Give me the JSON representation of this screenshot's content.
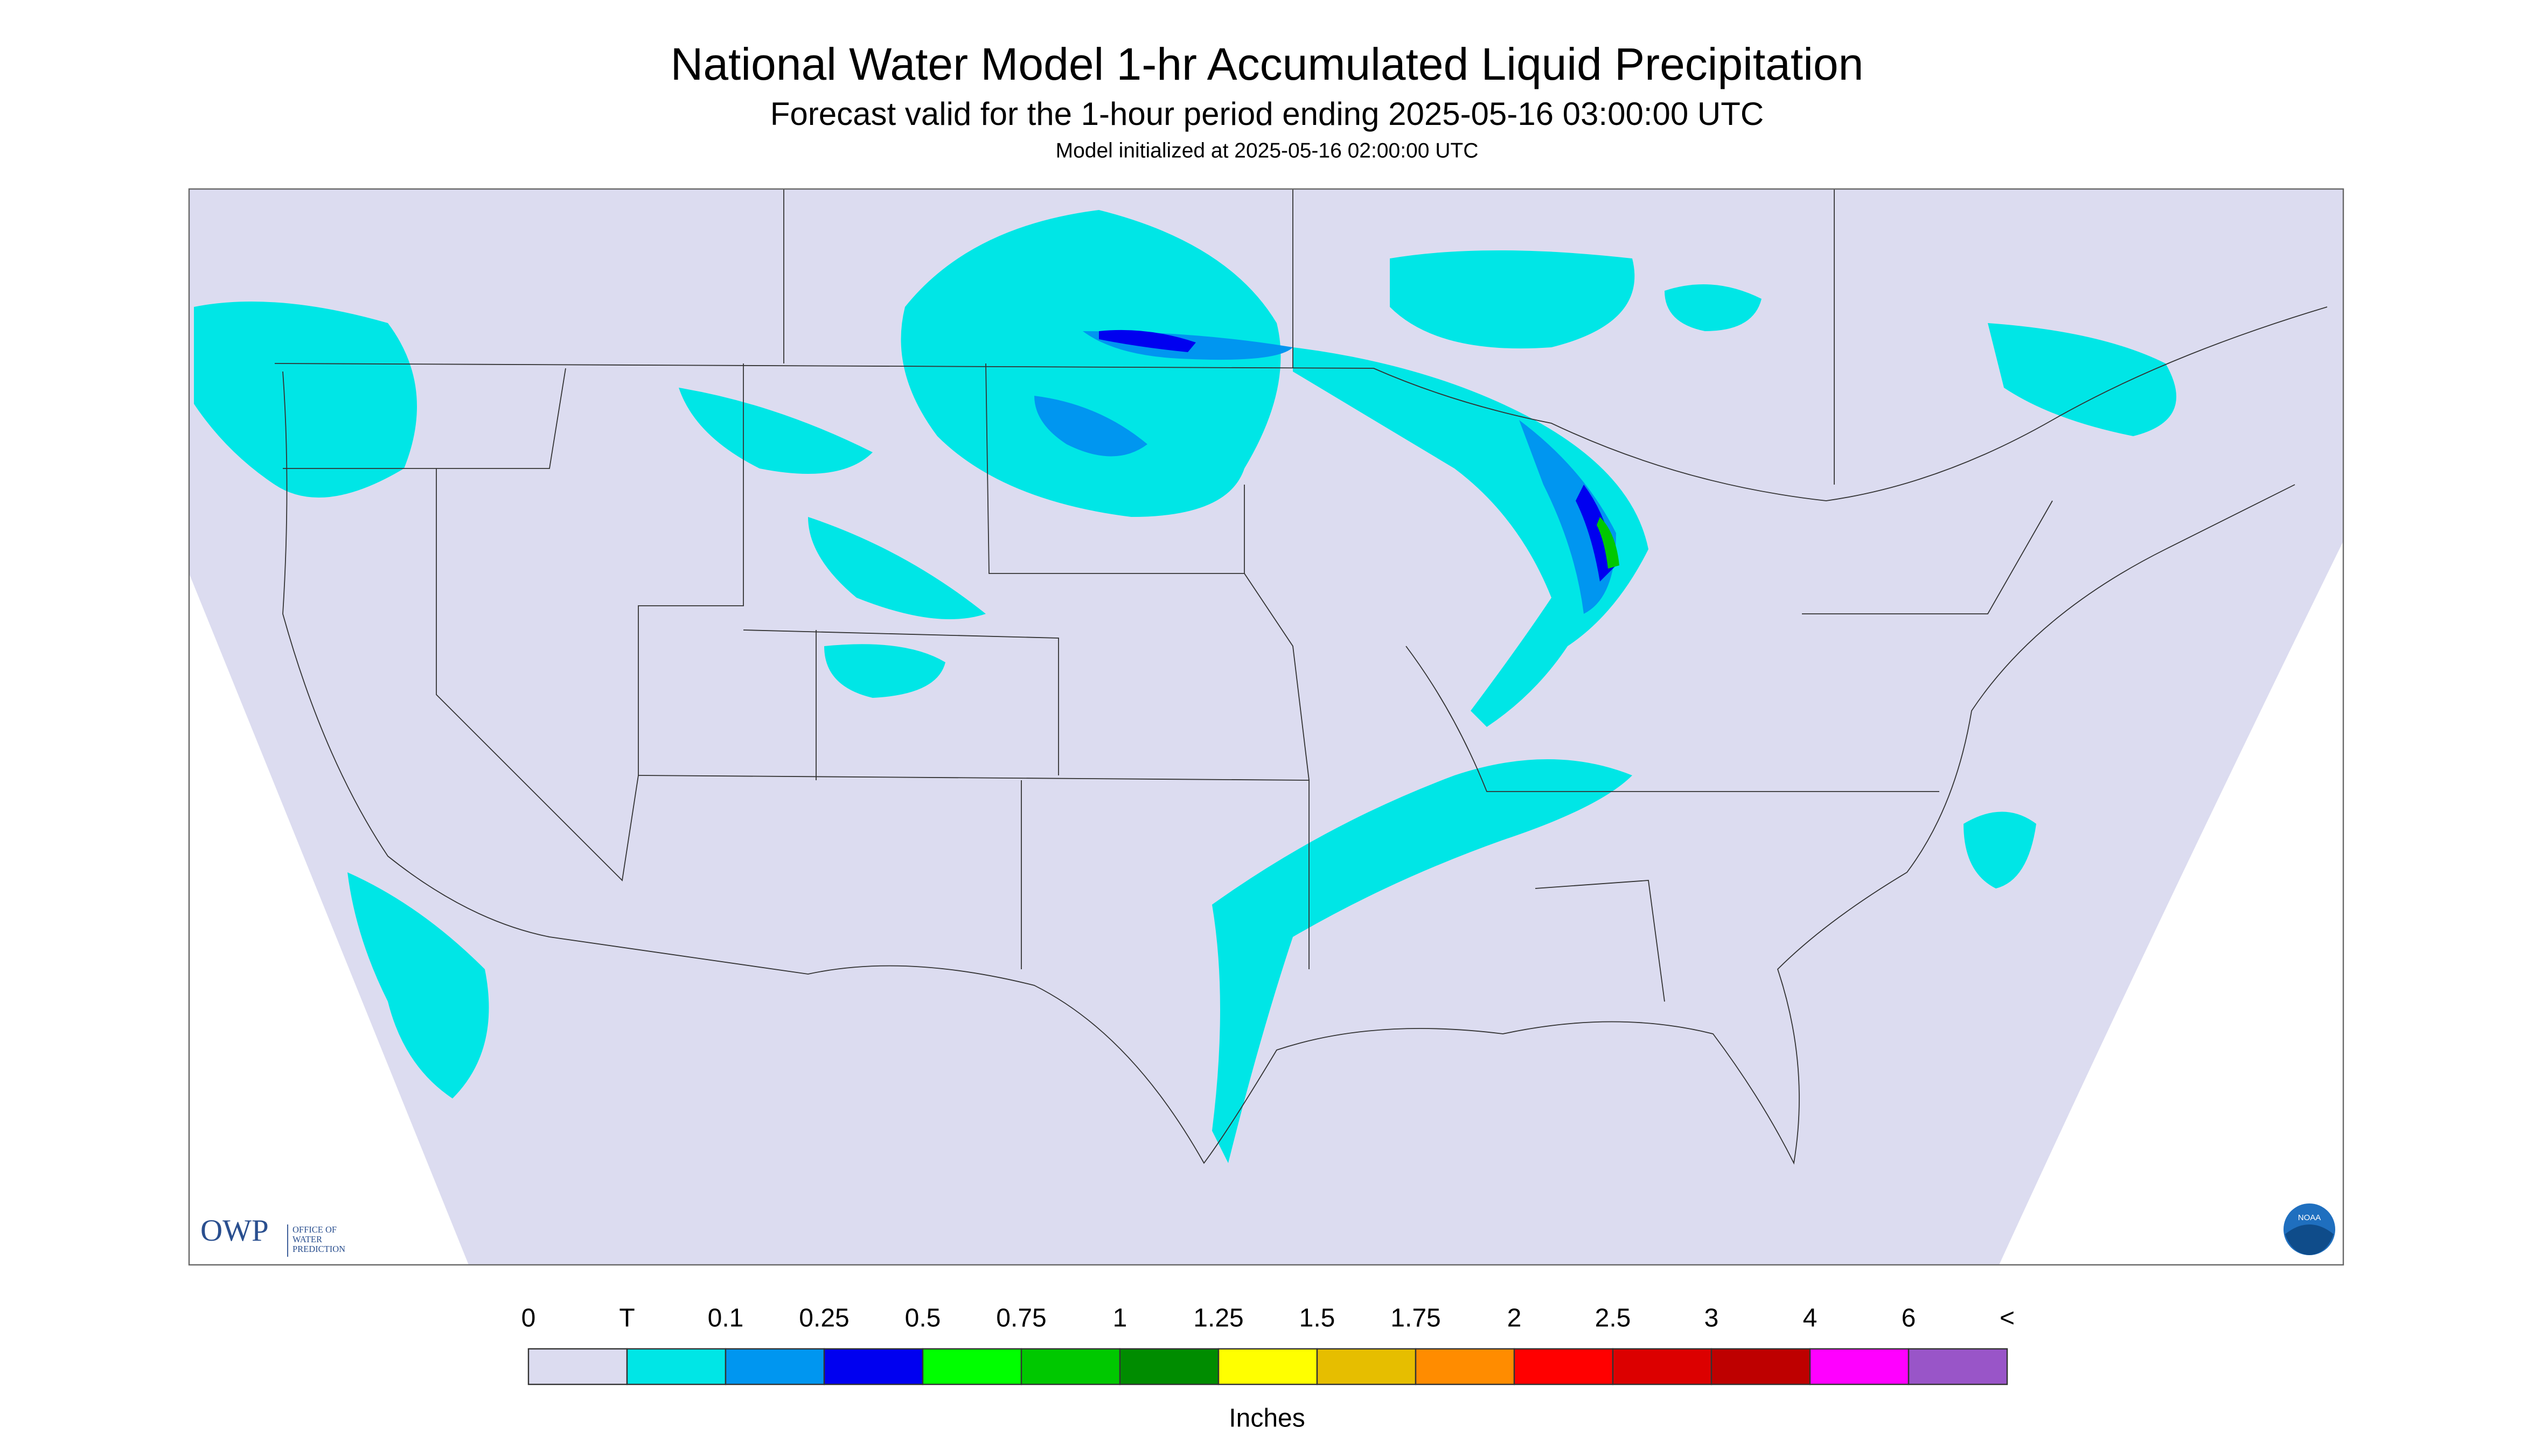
{
  "header": {
    "title": "National Water Model 1-hr Accumulated Liquid Precipitation",
    "subtitle": "Forecast valid for the 1-hour period ending 2025-05-16 03:00:00 UTC",
    "initialized": "Model initialized at 2025-05-16 02:00:00 UTC"
  },
  "legend": {
    "labels": [
      "0",
      "T",
      "0.1",
      "0.25",
      "0.5",
      "0.75",
      "1",
      "1.25",
      "1.5",
      "1.75",
      "2",
      "2.5",
      "3",
      "4",
      "6",
      "<"
    ],
    "colors": [
      "#dcdcf0",
      "#00e6e6",
      "#0096f0",
      "#0000f0",
      "#00ff00",
      "#00c800",
      "#008c00",
      "#ffff00",
      "#e6be00",
      "#ff8c00",
      "#ff0000",
      "#dc0000",
      "#be0000",
      "#ff00ff",
      "#9955c8"
    ],
    "unit": "Inches"
  },
  "logo": {
    "name": "OWP",
    "caption": [
      "OFFICE OF",
      "WATER",
      "PREDICTION"
    ],
    "agency": "NOAA"
  }
}
